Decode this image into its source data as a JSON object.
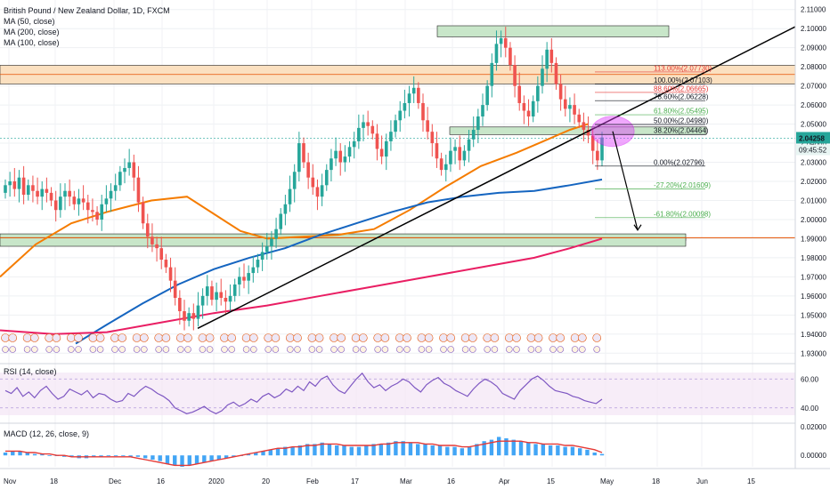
{
  "header": {
    "symbol": "British Pound / New Zealand Dollar, 1D, FXCM",
    "indicators": [
      "MA (50, close)",
      "MA (200, close)",
      "MA (100, close)"
    ],
    "rsi_label": "RSI (14, close)",
    "macd_label": "MACD (12, 26, close, 9)"
  },
  "price_axis": {
    "labels": [
      "2.11000",
      "2.10000",
      "2.09000",
      "2.08000",
      "2.07000",
      "2.06000",
      "2.05000",
      "2.04000",
      "2.03000",
      "2.02000",
      "2.01000",
      "2.00000",
      "1.99000",
      "1.98000",
      "1.97000",
      "1.96000",
      "1.95000",
      "1.94000",
      "1.93000"
    ],
    "current_price": "2.04258",
    "countdown": "09:45:52",
    "current_color": "#26a69a"
  },
  "time_axis": {
    "labels": [
      "Nov",
      "18",
      "Dec",
      "16",
      "2020",
      "20",
      "Feb",
      "17",
      "Mar",
      "16",
      "Apr",
      "15",
      "May",
      "18",
      "Jun",
      "15"
    ]
  },
  "fib_levels": [
    {
      "label": "113.00%(2.07730)",
      "color": "#e53935"
    },
    {
      "label": "100.00%(2.07103)",
      "color": "#131722"
    },
    {
      "label": "88.60%(2.06665)",
      "color": "#e53935"
    },
    {
      "label": "78.60%(2.06228)",
      "color": "#131722"
    },
    {
      "label": "61.80%(2.05495)",
      "color": "#4caf50"
    },
    {
      "label": "50.00%(2.04980)",
      "color": "#131722"
    },
    {
      "label": "38.20%(2.04464)",
      "color": "#131722"
    },
    {
      "label": "0.00%(2.02796)",
      "color": "#131722"
    },
    {
      "label": "-27.20%(2.01609)",
      "color": "#4caf50"
    },
    {
      "label": "-61.80%(2.00098)",
      "color": "#4caf50"
    }
  ],
  "rsi_axis": {
    "labels": [
      "60.00",
      "40.00"
    ]
  },
  "macd_axis": {
    "labels": [
      "0.02000",
      "0.00000"
    ]
  },
  "colors": {
    "up": "#26a69a",
    "down": "#ef5350",
    "ma50": "#f57c00",
    "ma100": "#1565c0",
    "ma200": "#e91e63",
    "rsi": "#7e57c2",
    "resistance_zone": "#fbe0c0",
    "support_zone": "#c8e6c9",
    "circle": "#e040fb"
  },
  "chart_data": [
    {
      "type": "candlestick",
      "title": "British Pound / New Zealand Dollar, 1D, FXCM",
      "ylim": [
        1.925,
        2.115
      ],
      "x_range": [
        "Nov",
        "Jun"
      ],
      "close_series_by_session": [
        2.018,
        2.02,
        2.016,
        2.022,
        2.013,
        2.018,
        2.015,
        2.012,
        2.016,
        2.014,
        2.01,
        2.005,
        2.012,
        2.015,
        2.012,
        2.008,
        2.011,
        2.009,
        2.005,
        2.004,
        2.0,
        2.008,
        2.011,
        2.015,
        2.018,
        2.025,
        2.027,
        2.03,
        2.022,
        2.009,
        1.998,
        1.991,
        1.987,
        1.985,
        1.979,
        1.975,
        1.968,
        1.959,
        1.952,
        1.947,
        1.951,
        1.948,
        1.955,
        1.96,
        1.965,
        1.958,
        1.962,
        1.959,
        1.957,
        1.96,
        1.966,
        1.97,
        1.968,
        1.972,
        1.975,
        1.979,
        1.983,
        1.986,
        1.99,
        1.995,
        2.003,
        2.008,
        2.016,
        2.025,
        2.04,
        2.03,
        2.022,
        2.017,
        2.012,
        2.018,
        2.026,
        2.032,
        2.036,
        2.03,
        2.033,
        2.038,
        2.041,
        2.048,
        2.051,
        2.049,
        2.045,
        2.037,
        2.033,
        2.041,
        2.046,
        2.052,
        2.057,
        2.061,
        2.066,
        2.069,
        2.061,
        2.052,
        2.046,
        2.04,
        2.032,
        2.026,
        2.029,
        2.036,
        2.038,
        2.031,
        2.036,
        2.042,
        2.047,
        2.054,
        2.06,
        2.07,
        2.082,
        2.092,
        2.095,
        2.09,
        2.081,
        2.07,
        2.061,
        2.057,
        2.054,
        2.062,
        2.07,
        2.079,
        2.089,
        2.082,
        2.071,
        2.063,
        2.058,
        2.06,
        2.055,
        2.051,
        2.047,
        2.044,
        2.036,
        2.031,
        2.043
      ],
      "moving_averages": [
        {
          "name": "MA (50, close)",
          "start": 1.97,
          "end": 2.049
        },
        {
          "name": "MA (100, close)",
          "start": 1.935,
          "end": 2.021
        },
        {
          "name": "MA (200, close)",
          "start": 1.936,
          "end": 1.99
        }
      ],
      "horizontal_levels": [
        2.0775,
        2.0447,
        1.9915
      ],
      "trendline": {
        "from": [
          "Jan 2020",
          1.943
        ],
        "to": [
          "Jun",
          2.101
        ]
      },
      "projection_target": 1.9945
    },
    {
      "type": "line",
      "title": "RSI (14, close)",
      "ylim": [
        30,
        70
      ],
      "series": [
        {
          "name": "RSI",
          "values": [
            52,
            50,
            54,
            48,
            51,
            47,
            52,
            55,
            50,
            46,
            48,
            53,
            51,
            49,
            52,
            47,
            50,
            49,
            46,
            44,
            45,
            50,
            48,
            52,
            55,
            53,
            50,
            48,
            45,
            40,
            38,
            36,
            37,
            39,
            41,
            38,
            36,
            38,
            42,
            44,
            41,
            43,
            46,
            44,
            48,
            50,
            47,
            49,
            53,
            51,
            55,
            52,
            58,
            55,
            60,
            62,
            56,
            52,
            50,
            55,
            60,
            64,
            58,
            54,
            56,
            52,
            55,
            57,
            60,
            58,
            54,
            51,
            56,
            59,
            61,
            57,
            55,
            52,
            50,
            48,
            53,
            57,
            60,
            58,
            55,
            50,
            48,
            46,
            52,
            56,
            60,
            62,
            59,
            55,
            52,
            51,
            50,
            48,
            47,
            45,
            44,
            43,
            46
          ]
        }
      ]
    },
    {
      "type": "bar",
      "title": "MACD (12, 26, close, 9)",
      "ylim": [
        -0.008,
        0.022
      ],
      "series": [
        {
          "name": "MACD histogram",
          "values": [
            0.002,
            0.003,
            0.003,
            0.002,
            0.001,
            0.001,
            0.0,
            0.0,
            -0.001,
            -0.001,
            -0.002,
            -0.002,
            -0.001,
            -0.001,
            0.0,
            0.0,
            0.0,
            -0.001,
            -0.001,
            -0.002,
            -0.003,
            -0.004,
            -0.006,
            -0.007,
            -0.008,
            -0.007,
            -0.006,
            -0.005,
            -0.004,
            -0.003,
            -0.002,
            -0.001,
            0.0,
            0.001,
            0.002,
            0.003,
            0.004,
            0.005,
            0.006,
            0.006,
            0.007,
            0.008,
            0.008,
            0.009,
            0.008,
            0.007,
            0.007,
            0.006,
            0.006,
            0.007,
            0.008,
            0.008,
            0.009,
            0.01,
            0.01,
            0.009,
            0.008,
            0.008,
            0.007,
            0.007,
            0.006,
            0.006,
            0.005,
            0.006,
            0.008,
            0.01,
            0.011,
            0.013,
            0.012,
            0.011,
            0.01,
            0.009,
            0.008,
            0.008,
            0.007,
            0.007,
            0.006,
            0.006,
            0.005,
            0.004,
            0.002,
            0.001
          ]
        },
        {
          "name": "Signal",
          "values": [
            0.003,
            0.003,
            0.003,
            0.002,
            0.002,
            0.001,
            0.001,
            0.0,
            0.0,
            -0.001,
            -0.001,
            -0.001,
            -0.001,
            -0.001,
            -0.001,
            -0.001,
            -0.001,
            -0.001,
            -0.002,
            -0.003,
            -0.004,
            -0.005,
            -0.006,
            -0.007,
            -0.007,
            -0.007,
            -0.006,
            -0.005,
            -0.004,
            -0.003,
            -0.002,
            -0.001,
            0.0,
            0.001,
            0.002,
            0.003,
            0.004,
            0.005,
            0.005,
            0.006,
            0.006,
            0.007,
            0.007,
            0.008,
            0.008,
            0.008,
            0.007,
            0.007,
            0.007,
            0.007,
            0.007,
            0.008,
            0.008,
            0.009,
            0.009,
            0.009,
            0.009,
            0.008,
            0.008,
            0.007,
            0.007,
            0.007,
            0.006,
            0.006,
            0.007,
            0.008,
            0.009,
            0.01,
            0.01,
            0.01,
            0.01,
            0.009,
            0.009,
            0.008,
            0.008,
            0.008,
            0.007,
            0.007,
            0.006,
            0.005,
            0.004,
            0.002
          ]
        }
      ]
    }
  ]
}
